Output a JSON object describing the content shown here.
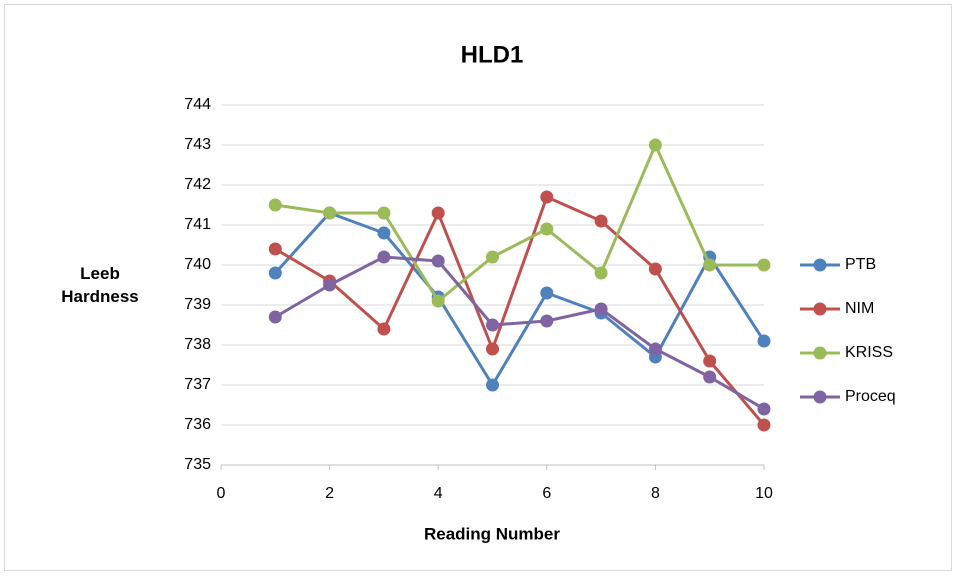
{
  "chart_data": {
    "type": "line",
    "title": "HLD1",
    "xlabel": "Reading Number",
    "ylabel": "Leeb Hardness",
    "x": [
      1,
      2,
      3,
      4,
      5,
      6,
      7,
      8,
      9,
      10
    ],
    "series": [
      {
        "name": "PTB",
        "color": "#4f81bd",
        "values": [
          739.8,
          741.3,
          740.8,
          739.2,
          737.0,
          739.3,
          738.8,
          737.7,
          740.2,
          738.1
        ]
      },
      {
        "name": "NIM",
        "color": "#c0504d",
        "values": [
          740.4,
          739.6,
          738.4,
          741.3,
          737.9,
          741.7,
          741.1,
          739.9,
          737.6,
          736.0
        ]
      },
      {
        "name": "KRISS",
        "color": "#9bbb59",
        "values": [
          741.5,
          741.3,
          741.3,
          739.1,
          740.2,
          740.9,
          739.8,
          743.0,
          740.0,
          740.0
        ]
      },
      {
        "name": "Proceq",
        "color": "#8064a2",
        "values": [
          738.7,
          739.5,
          740.2,
          740.1,
          738.5,
          738.6,
          738.9,
          737.9,
          737.2,
          736.4
        ]
      }
    ],
    "xlim": [
      0,
      10
    ],
    "xticks": [
      0,
      2,
      4,
      6,
      8,
      10
    ],
    "ylim": [
      735,
      744
    ],
    "yticks": [
      735,
      736,
      737,
      738,
      739,
      740,
      741,
      742,
      743,
      744
    ],
    "grid": true,
    "legend": "right"
  }
}
